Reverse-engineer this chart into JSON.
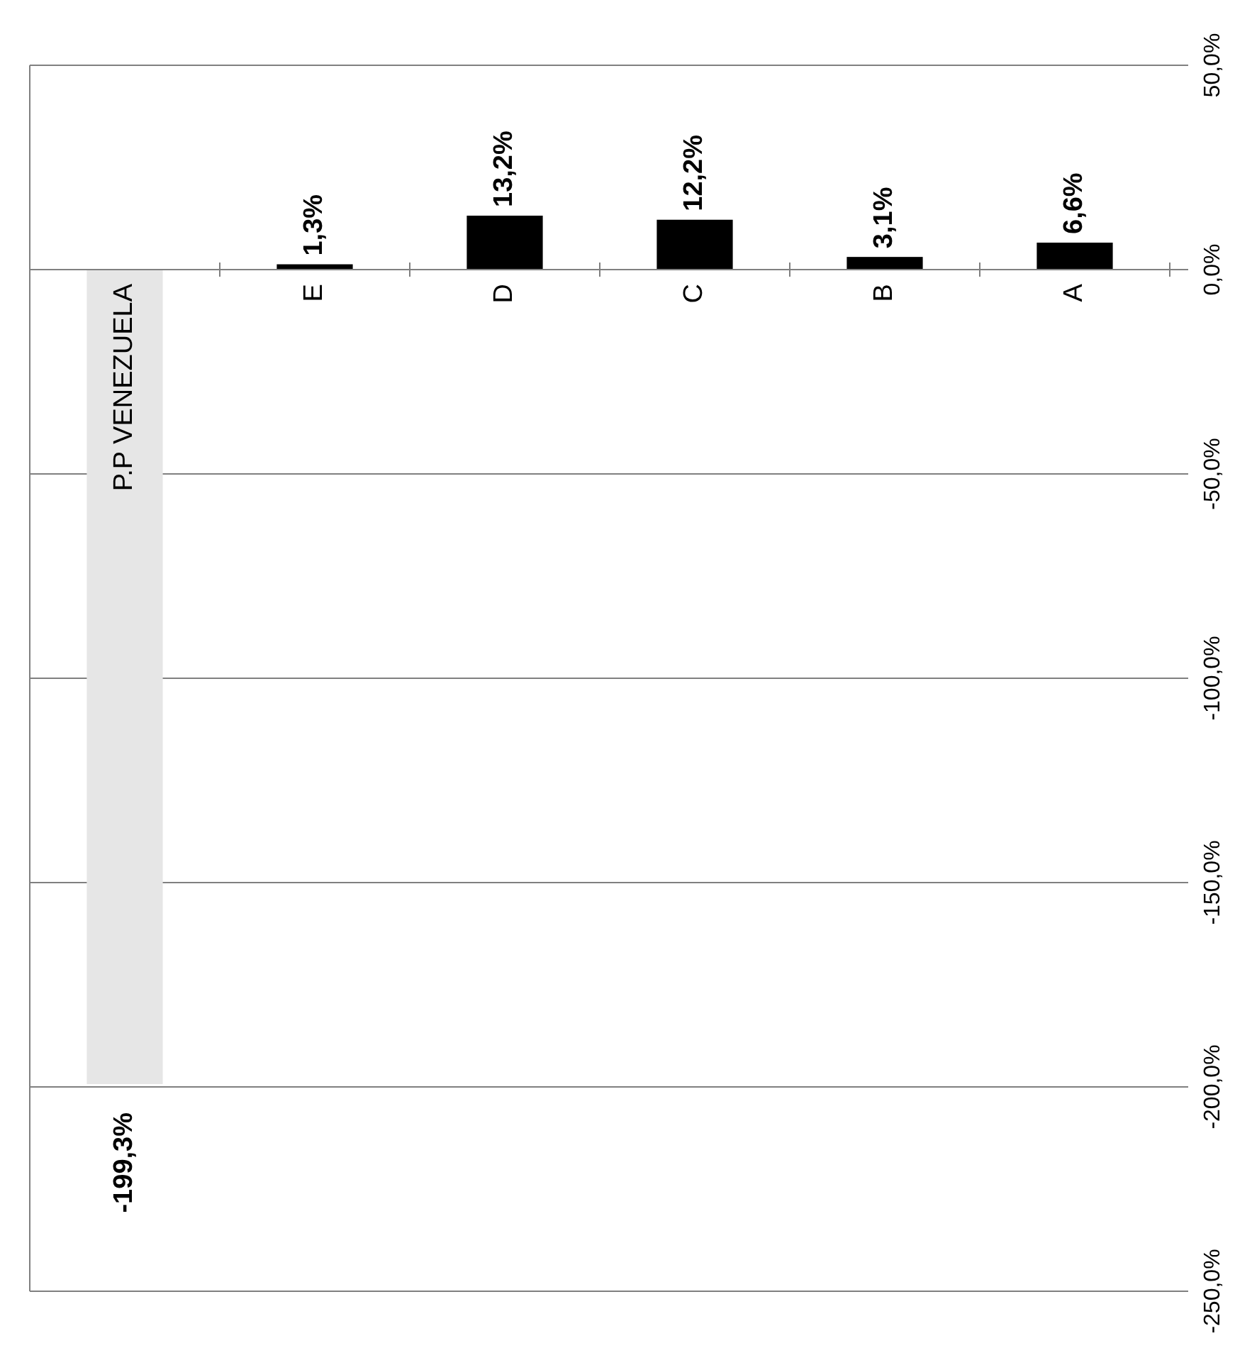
{
  "chart_data": {
    "type": "bar",
    "categories": [
      "P.P VENEZUELA",
      "E",
      "D",
      "C",
      "B",
      "A"
    ],
    "values": [
      -199.3,
      1.3,
      13.2,
      12.2,
      3.1,
      6.6
    ],
    "colors": [
      "#e6e6e6",
      "#000000",
      "#000000",
      "#000000",
      "#000000",
      "#000000"
    ],
    "value_labels": [
      "-199,3%",
      "1,3%",
      "13,2%",
      "12,2%",
      "3,1%",
      "6,6%"
    ],
    "ylim": [
      -250,
      50
    ],
    "yticks": [
      {
        "value": -250,
        "label": "-250,0%"
      },
      {
        "value": -200,
        "label": "-200,0%"
      },
      {
        "value": -150,
        "label": "-150,0%"
      },
      {
        "value": -100,
        "label": "-100,0%"
      },
      {
        "value": -50,
        "label": "-50,0%"
      },
      {
        "value": 0,
        "label": "0,0%"
      },
      {
        "value": 50,
        "label": "50,0%"
      }
    ],
    "grid": "y"
  }
}
